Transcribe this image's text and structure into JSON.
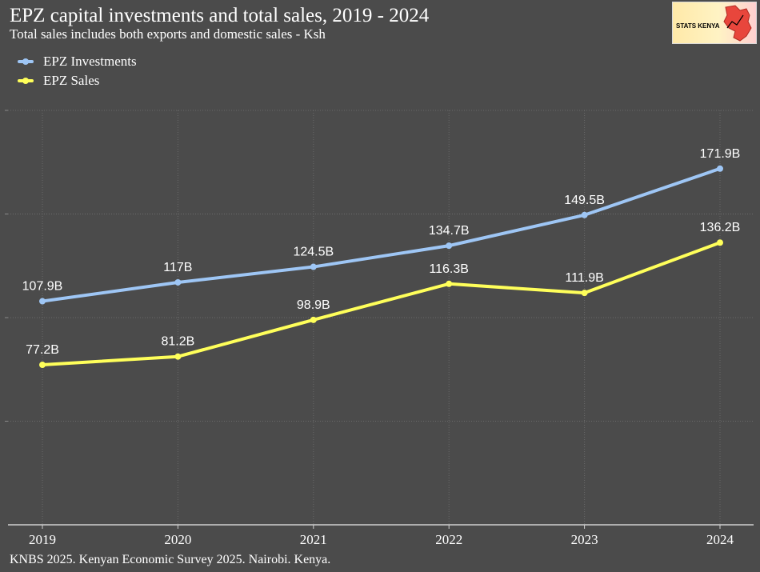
{
  "title": "EPZ capital investments and total sales, 2019 - 2024",
  "subtitle": "Total sales includes both exports and domestic sales - Ksh",
  "source": "KNBS 2025. Kenyan Economic Survey 2025. Nairobi. Kenya.",
  "logo": {
    "text": "STATS KENYA"
  },
  "chart_data": {
    "type": "line",
    "x": [
      "2019",
      "2020",
      "2021",
      "2022",
      "2023",
      "2024"
    ],
    "ylim": [
      0,
      200
    ],
    "grid": true,
    "legend_position": "top-left",
    "series": [
      {
        "name": "EPZ Investments",
        "color": "#9ec6f5",
        "values": [
          107.9,
          117,
          124.5,
          134.7,
          149.5,
          171.9
        ],
        "labels": [
          "107.9B",
          "117B",
          "124.5B",
          "134.7B",
          "149.5B",
          "171.9B"
        ]
      },
      {
        "name": "EPZ Sales",
        "color": "#ffff5a",
        "values": [
          77.2,
          81.2,
          98.9,
          116.3,
          111.9,
          136.2
        ],
        "labels": [
          "77.2B",
          "81.2B",
          "98.9B",
          "116.3B",
          "111.9B",
          "136.2B"
        ]
      }
    ]
  }
}
